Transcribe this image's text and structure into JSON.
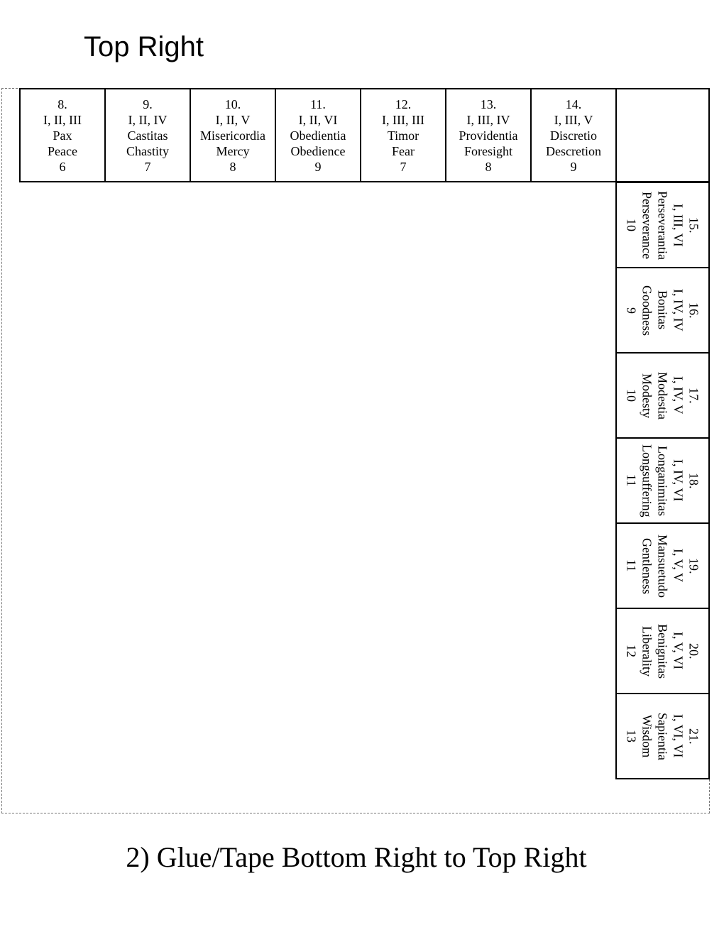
{
  "title": "Top Right",
  "footer": "2) Glue/Tape Bottom Right to Top Right",
  "top_cells": [
    {
      "num": "8.",
      "roman": "I, II, III",
      "latin": "Pax",
      "english": "Peace",
      "value": "6"
    },
    {
      "num": "9.",
      "roman": "I, II, IV",
      "latin": "Castitas",
      "english": "Chastity",
      "value": "7"
    },
    {
      "num": "10.",
      "roman": "I, II, V",
      "latin": "Misericordia",
      "english": "Mercy",
      "value": "8"
    },
    {
      "num": "11.",
      "roman": "I, II, VI",
      "latin": "Obedientia",
      "english": "Obedience",
      "value": "9"
    },
    {
      "num": "12.",
      "roman": "I, III, III",
      "latin": "Timor",
      "english": "Fear",
      "value": "7"
    },
    {
      "num": "13.",
      "roman": "I, III, IV",
      "latin": "Providentia",
      "english": "Foresight",
      "value": "8"
    },
    {
      "num": "14.",
      "roman": "I, III, V",
      "latin": "Discretio",
      "english": "Descretion",
      "value": "9"
    }
  ],
  "side_cells": [
    {
      "num": "15.",
      "roman": "I, III, VI",
      "latin": "Perseverantia",
      "english": "Perseverance",
      "value": "10"
    },
    {
      "num": "16.",
      "roman": "I, IV, IV",
      "latin": "Bonitas",
      "english": "Goodness",
      "value": "9"
    },
    {
      "num": "17.",
      "roman": "I, IV, V",
      "latin": "Modestia",
      "english": "Modesty",
      "value": "10"
    },
    {
      "num": "18.",
      "roman": "I, IV, VI",
      "latin": "Longanimitas",
      "english": "Longsuffering",
      "value": "11"
    },
    {
      "num": "19.",
      "roman": "I, V, V",
      "latin": "Mansuetudo",
      "english": "Gentleness",
      "value": "11"
    },
    {
      "num": "20.",
      "roman": "I, V, VI",
      "latin": "Benignitas",
      "english": "Liberality",
      "value": "12"
    },
    {
      "num": "21.",
      "roman": "I, VI, VI",
      "latin": "Sapientia",
      "english": "Wisdom",
      "value": "13"
    }
  ]
}
